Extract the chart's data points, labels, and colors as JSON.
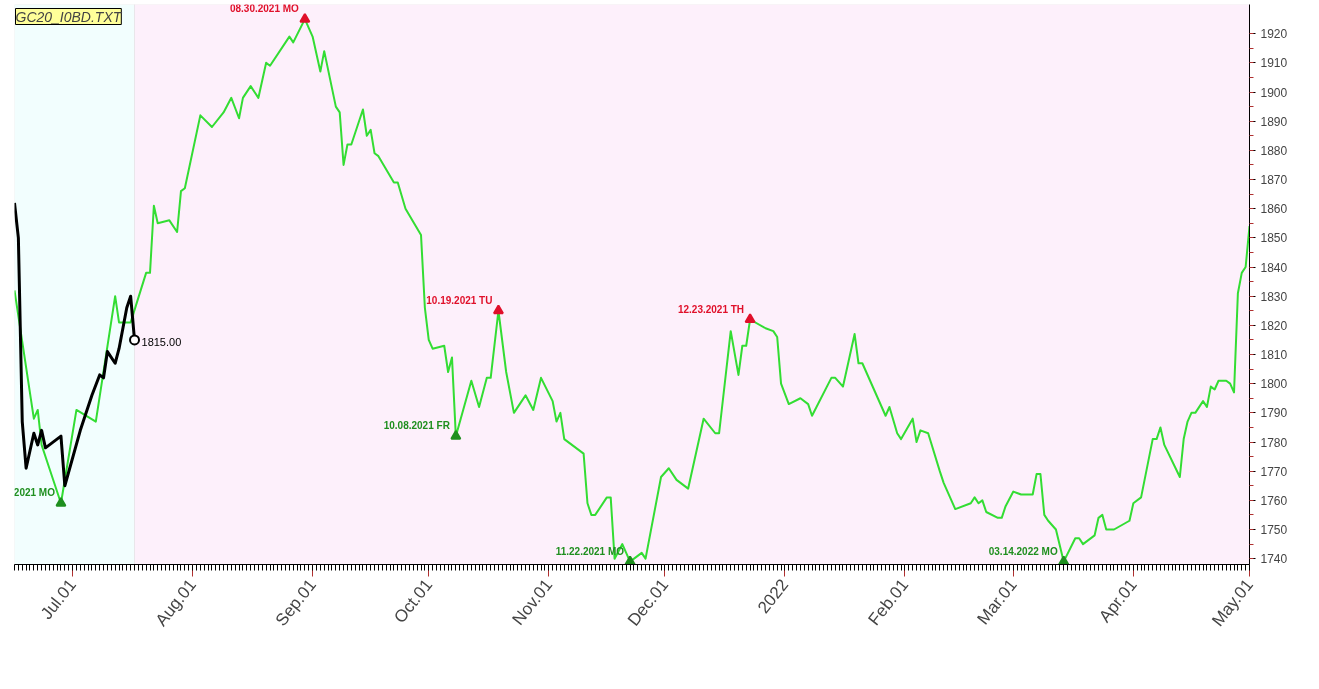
{
  "chart_data": {
    "type": "line",
    "title": "GC20_I0BD.TXT",
    "xlim": [
      "2021-06-16",
      "2022-05-01"
    ],
    "ylim": [
      1738,
      1930
    ],
    "xticks": [
      {
        "value": "2021-07-01",
        "label": "Jul.01"
      },
      {
        "value": "2021-08-01",
        "label": "Aug.01"
      },
      {
        "value": "2021-09-01",
        "label": "Sep.01"
      },
      {
        "value": "2021-10-01",
        "label": "Oct.01"
      },
      {
        "value": "2021-11-01",
        "label": "Nov.01"
      },
      {
        "value": "2021-12-01",
        "label": "Dec.01"
      },
      {
        "value": "2022-01-01",
        "label": "2022"
      },
      {
        "value": "2022-02-01",
        "label": "Feb.01"
      },
      {
        "value": "2022-03-01",
        "label": "Mar.01"
      },
      {
        "value": "2022-04-01",
        "label": "Apr.01"
      },
      {
        "value": "2022-05-01",
        "label": "May.01"
      }
    ],
    "yticks": [
      1740,
      1750,
      1760,
      1770,
      1780,
      1790,
      1800,
      1810,
      1820,
      1830,
      1840,
      1850,
      1860,
      1870,
      1880,
      1890,
      1900,
      1910,
      1920
    ],
    "grid": false,
    "line_style": "solid",
    "bands": [
      {
        "axis": "x",
        "from": "2021-06-16",
        "to": "2021-07-17",
        "color": "#f2fefe"
      },
      {
        "axis": "x",
        "from": "2021-07-17",
        "to": "2022-05-01",
        "color": "#fdf0fb"
      }
    ],
    "series": [
      {
        "color": "#33dd33",
        "x": [
          "2021-06-16",
          "2021-06-21",
          "2021-06-22",
          "2021-06-23",
          "2021-06-25",
          "2021-06-28",
          "2021-07-02",
          "2021-07-07",
          "2021-07-12",
          "2021-07-13",
          "2021-07-16",
          "2021-07-20",
          "2021-07-21",
          "2021-07-22",
          "2021-07-23",
          "2021-07-26",
          "2021-07-28",
          "2021-07-29",
          "2021-07-30",
          "2021-08-03",
          "2021-08-06",
          "2021-08-09",
          "2021-08-11",
          "2021-08-13",
          "2021-08-14",
          "2021-08-16",
          "2021-08-18",
          "2021-08-20",
          "2021-08-21",
          "2021-08-26",
          "2021-08-27",
          "2021-08-30",
          "2021-09-01",
          "2021-09-03",
          "2021-09-04",
          "2021-09-07",
          "2021-09-08",
          "2021-09-09",
          "2021-09-10",
          "2021-09-11",
          "2021-09-14",
          "2021-09-15",
          "2021-09-16",
          "2021-09-17",
          "2021-09-18",
          "2021-09-22",
          "2021-09-23",
          "2021-09-25",
          "2021-09-29",
          "2021-09-30",
          "2021-10-01",
          "2021-10-02",
          "2021-10-05",
          "2021-10-06",
          "2021-10-07",
          "2021-10-08",
          "2021-10-12",
          "2021-10-14",
          "2021-10-16",
          "2021-10-17",
          "2021-10-19",
          "2021-10-21",
          "2021-10-23",
          "2021-10-26",
          "2021-10-28",
          "2021-10-30",
          "2021-11-02",
          "2021-11-03",
          "2021-11-04",
          "2021-11-05",
          "2021-11-10",
          "2021-11-11",
          "2021-11-12",
          "2021-11-13",
          "2021-11-16",
          "2021-11-17",
          "2021-11-18",
          "2021-11-20",
          "2021-11-22",
          "2021-11-25",
          "2021-11-26",
          "2021-11-30",
          "2021-12-02",
          "2021-12-04",
          "2021-12-07",
          "2021-12-11",
          "2021-12-14",
          "2021-12-15",
          "2021-12-18",
          "2021-12-20",
          "2021-12-21",
          "2021-12-22",
          "2021-12-23",
          "2021-12-27",
          "2021-12-29",
          "2021-12-30",
          "2021-12-31",
          "2022-01-02",
          "2022-01-05",
          "2022-01-07",
          "2022-01-08",
          "2022-01-13",
          "2022-01-14",
          "2022-01-16",
          "2022-01-19",
          "2022-01-20",
          "2022-01-21",
          "2022-01-24",
          "2022-01-27",
          "2022-01-28",
          "2022-01-30",
          "2022-01-31",
          "2022-02-03",
          "2022-02-04",
          "2022-02-05",
          "2022-02-07",
          "2022-02-10",
          "2022-02-11",
          "2022-02-14",
          "2022-02-18",
          "2022-02-19",
          "2022-02-20",
          "2022-02-21",
          "2022-02-22",
          "2022-02-25",
          "2022-02-26",
          "2022-02-27",
          "2022-03-01",
          "2022-03-03",
          "2022-03-05",
          "2022-03-06",
          "2022-03-07",
          "2022-03-08",
          "2022-03-09",
          "2022-03-10",
          "2022-03-12",
          "2022-03-14",
          "2022-03-17",
          "2022-03-18",
          "2022-03-19",
          "2022-03-22",
          "2022-03-23",
          "2022-03-24",
          "2022-03-25",
          "2022-03-27",
          "2022-03-31",
          "2022-04-01",
          "2022-04-03",
          "2022-04-06",
          "2022-04-07",
          "2022-04-08",
          "2022-04-09",
          "2022-04-13",
          "2022-04-14",
          "2022-04-15",
          "2022-04-16",
          "2022-04-17",
          "2022-04-19",
          "2022-04-20",
          "2022-04-21",
          "2022-04-22",
          "2022-04-23",
          "2022-04-25",
          "2022-04-26",
          "2022-04-27",
          "2022-04-28",
          "2022-04-29",
          "2022-04-30",
          "2022-05-01"
        ],
        "values": [
          1832,
          1788,
          1791,
          1779,
          1771,
          1759,
          1791,
          1787,
          1830,
          1821,
          1821,
          1838,
          1838,
          1861,
          1855,
          1856,
          1852,
          1866,
          1867,
          1892,
          1888,
          1893,
          1898,
          1891,
          1898,
          1902,
          1898,
          1910,
          1909,
          1919,
          1917,
          1925,
          1919,
          1907,
          1914,
          1895,
          1893,
          1875,
          1882,
          1882,
          1894,
          1885,
          1887,
          1879,
          1878,
          1869,
          1869,
          1860,
          1851,
          1826,
          1815,
          1812,
          1813,
          1804,
          1809,
          1782,
          1801,
          1792,
          1802,
          1802,
          1825,
          1804,
          1790,
          1796,
          1791,
          1802,
          1794,
          1787,
          1790,
          1781,
          1776,
          1759,
          1755,
          1755,
          1761,
          1761,
          1740,
          1745,
          1739,
          1742,
          1740,
          1768,
          1771,
          1767,
          1764,
          1788,
          1783,
          1783,
          1818,
          1803,
          1813,
          1813,
          1822,
          1819,
          1818,
          1816,
          1800,
          1793,
          1795,
          1793,
          1789,
          1802,
          1802,
          1799,
          1817,
          1807,
          1807,
          1798,
          1789,
          1792,
          1783,
          1781,
          1788,
          1780,
          1784,
          1783,
          1770,
          1766,
          1757,
          1759,
          1761,
          1759,
          1760,
          1756,
          1754,
          1754,
          1758,
          1763,
          1762,
          1762,
          1762,
          1769,
          1769,
          1755,
          1753,
          1750,
          1739,
          1747,
          1747,
          1745,
          1748,
          1754,
          1755,
          1750,
          1750,
          1753,
          1759,
          1761,
          1781,
          1781,
          1785,
          1779,
          1768,
          1781,
          1787,
          1790,
          1790,
          1794,
          1792,
          1799,
          1798,
          1801,
          1801,
          1800,
          1797,
          1831,
          1838,
          1840,
          1854
        ]
      },
      {
        "color": "#000000",
        "x": [
          "2021-06-16",
          "2021-06-17",
          "2021-06-18",
          "2021-06-19",
          "2021-06-21",
          "2021-06-22",
          "2021-06-23",
          "2021-06-24",
          "2021-06-28",
          "2021-06-29",
          "2021-07-03",
          "2021-07-06",
          "2021-07-08",
          "2021-07-09",
          "2021-07-10",
          "2021-07-12",
          "2021-07-13",
          "2021-07-15",
          "2021-07-16",
          "2021-07-17"
        ],
        "values": [
          1862,
          1850,
          1787,
          1771,
          1783,
          1779,
          1784,
          1778,
          1782,
          1765,
          1784,
          1796,
          1803,
          1802,
          1811,
          1807,
          1812,
          1826,
          1830,
          1815
        ]
      },
      {
        "type": "scatter",
        "marker": "triangle",
        "color": "#1f8f1f",
        "x": [
          "2021-06-28",
          "2021-10-08",
          "2021-11-22",
          "2022-03-14"
        ],
        "values": [
          1759,
          1782,
          1739,
          1739
        ]
      },
      {
        "type": "scatter",
        "marker": "triangle",
        "color": "#e0102a",
        "x": [
          "2021-08-30",
          "2021-10-19",
          "2021-12-23"
        ],
        "values": [
          1925,
          1825,
          1822
        ]
      },
      {
        "type": "scatter",
        "marker": "circle",
        "color": "#000000",
        "x": [
          "2021-07-17"
        ],
        "values": [
          1815
        ]
      }
    ],
    "annotations": [
      {
        "text": "2021 MO",
        "x": "2021-06-28",
        "y": 1759
      },
      {
        "text": "08.30.2021 MO",
        "x": "2021-08-30",
        "y": 1925
      },
      {
        "text": "10.08.2021 FR",
        "x": "2021-10-08",
        "y": 1782
      },
      {
        "text": "10.19.2021 TU",
        "x": "2021-10-19",
        "y": 1825
      },
      {
        "text": "11.22.2021 MO",
        "x": "2021-11-22",
        "y": 1739
      },
      {
        "text": "12.23.2021 TH",
        "x": "2021-12-23",
        "y": 1822
      },
      {
        "text": "03.14.2022 MO",
        "x": "2022-03-14",
        "y": 1739
      },
      {
        "text": "1815.00",
        "x": "2021-07-17",
        "y": 1815
      }
    ]
  }
}
